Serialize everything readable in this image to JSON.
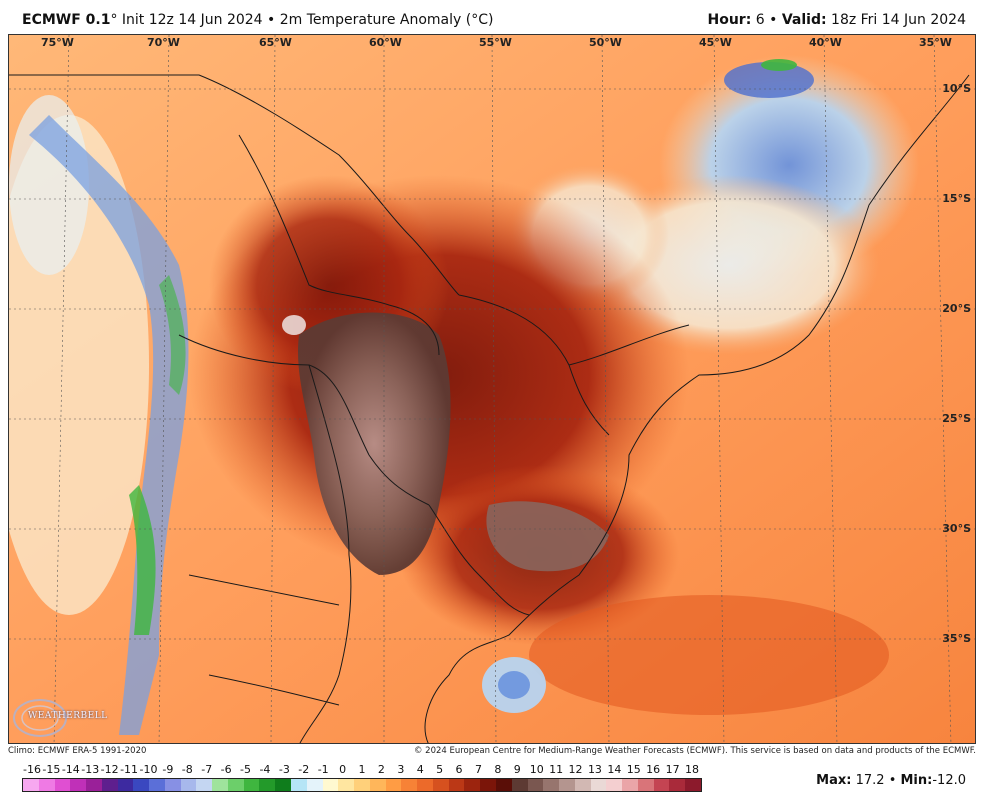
{
  "header": {
    "model": "ECMWF 0.1",
    "degree": "°",
    "init": "Init 12z 14 Jun 2024",
    "bullet1": "•",
    "product": "2m Temperature Anomaly (°C)",
    "hour_label": "Hour:",
    "hour_value": "6",
    "bullet2": "•",
    "valid_label": "Valid:",
    "valid_value": "18z Fri 14 Jun 2024"
  },
  "map": {
    "lon_labels": [
      "75°W",
      "70°W",
      "65°W",
      "60°W",
      "55°W",
      "50°W",
      "45°W",
      "40°W",
      "35°W"
    ],
    "lat_labels": [
      "10°S",
      "15°S",
      "20°S",
      "25°S",
      "30°S",
      "35°S"
    ],
    "logo_text": "WEATHERBELL"
  },
  "credits": {
    "left": "Climo: ECMWF ERA-5 1991-2020",
    "right": "© 2024 European Centre for Medium-Range Weather Forecasts (ECMWF). This service is based on data and products of the ECMWF."
  },
  "colorbar": {
    "labels": [
      "-16",
      "-15",
      "-14",
      "-13",
      "-12",
      "-11",
      "-10",
      "-9",
      "-8",
      "-7",
      "-6",
      "-5",
      "-4",
      "-3",
      "-2",
      "-1",
      "0",
      "1",
      "2",
      "3",
      "4",
      "5",
      "6",
      "7",
      "8",
      "9",
      "10",
      "11",
      "12",
      "13",
      "14",
      "15",
      "16",
      "17",
      "18"
    ],
    "colors": [
      "#f7a8f0",
      "#ef7ae4",
      "#e04fd2",
      "#c030b8",
      "#9a2099",
      "#5e1f8e",
      "#3d2aa0",
      "#3a48c0",
      "#5b6fd8",
      "#8790e4",
      "#a7b8ec",
      "#c4d6f2",
      "#9fe39c",
      "#6ccf6a",
      "#3fb63f",
      "#239a2a",
      "#0f7d1c",
      "#b5e5f6",
      "#e4f3fa",
      "#fff9d0",
      "#ffe6a0",
      "#ffd07a",
      "#ffb65a",
      "#ff9c44",
      "#f78236",
      "#ec6a2a",
      "#d6511f",
      "#bb3816",
      "#9c240e",
      "#7b1509",
      "#5a0e07",
      "#5d3a33",
      "#7a5750",
      "#97756e",
      "#b4958f",
      "#d2b8b3",
      "#ead9d6",
      "#f4cfd0",
      "#eaa5a8",
      "#d97479",
      "#c44452",
      "#a92a3a",
      "#8c1a2c"
    ]
  },
  "stats": {
    "max_label": "Max:",
    "max_value": "17.2",
    "bullet": "•",
    "min_label": "Min:",
    "min_value": "-12.0"
  }
}
